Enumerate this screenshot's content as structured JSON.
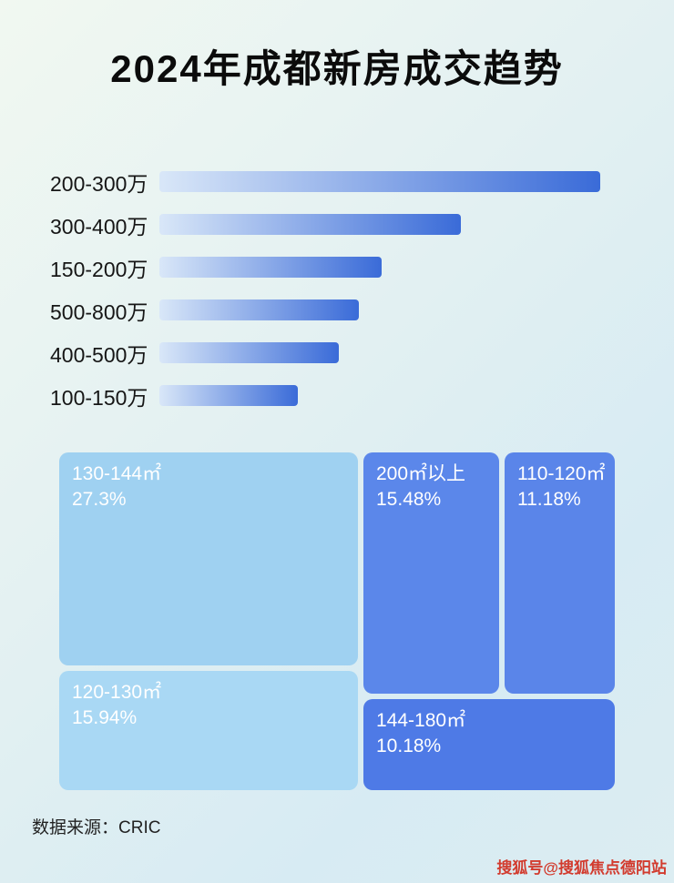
{
  "title": "2024年成都新房成交趋势",
  "chart_data": [
    {
      "type": "bar",
      "orientation": "horizontal",
      "title": "2024年成都新房成交趋势",
      "categories": [
        "200-300万",
        "300-400万",
        "150-200万",
        "500-800万",
        "400-500万",
        "100-150万"
      ],
      "values": [
        100,
        68.3,
        50.5,
        45.3,
        40.6,
        31.5
      ],
      "note": "values are relative bar lengths in percent of the longest bar; no numeric axis or data labels are shown in the image",
      "bar_gradient": [
        "#d9e7f8",
        "#3a6bd8"
      ],
      "grid": false,
      "legend": false
    },
    {
      "type": "treemap",
      "title": "",
      "items": [
        {
          "label": "130-144㎡",
          "value": "27.3%",
          "color": "#9fd1f1"
        },
        {
          "label": "120-130㎡",
          "value": "15.94%",
          "color": "#a9d8f4"
        },
        {
          "label": "200㎡以上",
          "value": "15.48%",
          "color": "#5b87ea"
        },
        {
          "label": "110-120㎡",
          "value": "11.18%",
          "color": "#5a85e9"
        },
        {
          "label": "144-180㎡",
          "value": "10.18%",
          "color": "#4e7ae6"
        }
      ]
    }
  ],
  "footer": {
    "source_label": "数据来源：CRIC"
  },
  "watermark": {
    "text": "搜狐号@搜狐焦点德阳站",
    "color": "#d23b2e"
  }
}
